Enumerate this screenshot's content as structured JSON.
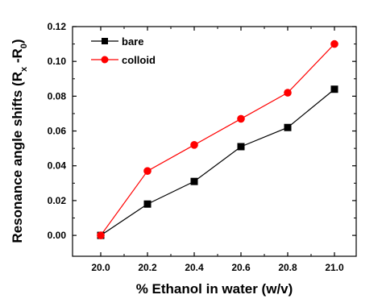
{
  "chart_data": {
    "type": "line",
    "x": [
      "20.0",
      "20.2",
      "20.4",
      "20.6",
      "20.8",
      "21.0"
    ],
    "series": [
      {
        "name": "bare",
        "values": [
          0.0,
          0.018,
          0.031,
          0.051,
          0.062,
          0.084
        ],
        "color": "#000000",
        "marker": "square"
      },
      {
        "name": "colloid",
        "values": [
          0.0,
          0.037,
          0.052,
          0.067,
          0.082,
          0.11
        ],
        "color": "#ff0000",
        "marker": "circle"
      }
    ],
    "xlabel": "% Ethanol in water (w/v)",
    "ylabel": {
      "main": "Resonance angle shifts (R",
      "sub1": "x",
      "mid": " -R",
      "sub2": "0",
      "end": ")"
    },
    "ylim": [
      -0.012,
      0.12
    ],
    "yticks": [
      "0.00",
      "0.02",
      "0.04",
      "0.06",
      "0.08",
      "0.10",
      "0.12"
    ],
    "legend_position": "top-left",
    "grid": false
  }
}
